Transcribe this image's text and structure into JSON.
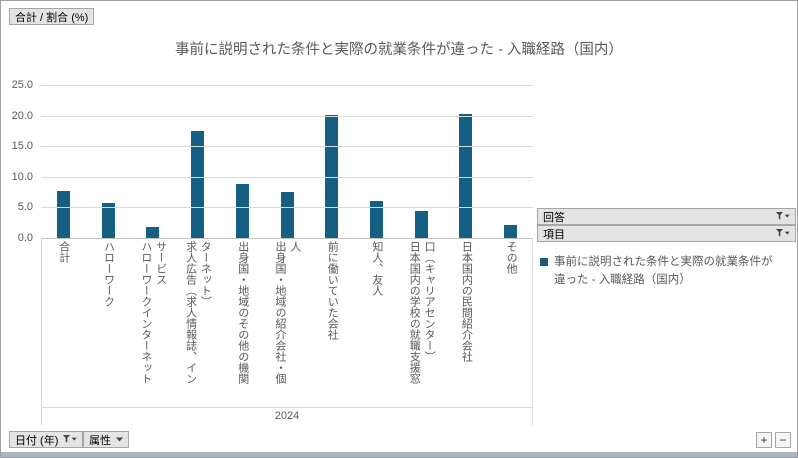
{
  "chart_data": {
    "type": "bar",
    "title": "事前に説明された条件と実際の就業条件が違った - 入職経路（国内）",
    "categories": [
      "合計",
      "ハローワーク",
      "ハローワークインターネット\nサービス",
      "求人広告（求人情報誌、イン\nターネット）",
      "出身国・地域のその他の機関",
      "出身国・地域の紹介会社・個\n人",
      "前に働いていた会社",
      "知人、友人",
      "日本国内の学校の就職支援窓\n口（キャリアセンター）",
      "日本国内の民間紹介会社",
      "その他"
    ],
    "series": [
      {
        "name": "事前に説明された条件と実際の就業条件が違った - 入職経路（国内）",
        "values": [
          7.7,
          5.7,
          1.8,
          17.5,
          8.8,
          7.5,
          20.1,
          6.1,
          4.4,
          20.2,
          2.1
        ]
      }
    ],
    "group_label": "2024",
    "ylim": [
      0,
      25
    ],
    "ytick_labels": [
      "25.0",
      "20.0",
      "15.0",
      "10.0",
      "5.0",
      "0.0"
    ],
    "bar_color": "#156082",
    "grid": true,
    "legend_position": "right"
  },
  "field_buttons": {
    "value": "合計 / 割合 (%)",
    "answer": "回答",
    "item": "項目",
    "date": "日付 (年)",
    "attribute": "属性"
  },
  "legend": {
    "series_label": "事前に説明された条件と実際の就業条件が違った - 入職経路（国内）"
  },
  "zoom": {
    "in": "+",
    "out": "−"
  }
}
